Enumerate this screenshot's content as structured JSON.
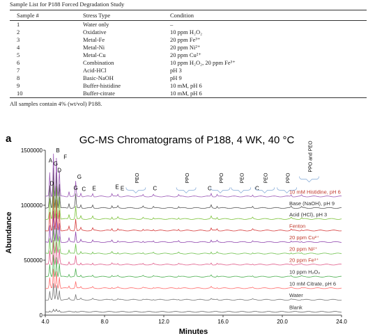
{
  "table": {
    "caption": "Sample List for P188 Forced Degradation Study",
    "headers": [
      "Sample #",
      "Stress Type",
      "Condition"
    ],
    "rows": [
      [
        "1",
        "Water only",
        "–"
      ],
      [
        "2",
        "Oxidative",
        "10 ppm H₂O₂"
      ],
      [
        "3",
        "Metal-Fe",
        "20 ppm Fe³⁺"
      ],
      [
        "4",
        "Metal-Ni",
        "20 ppm Ni²⁺"
      ],
      [
        "5",
        "Metal-Cu",
        "20 ppm Cu²⁺"
      ],
      [
        "6",
        "Combination",
        "10 ppm H₂O₂, 20 ppm Fe³⁺"
      ],
      [
        "7",
        "Acid-HCl",
        "pH 3"
      ],
      [
        "8",
        "Basic-NaOH",
        "pH 9"
      ],
      [
        "9",
        "Buffer-histidine",
        "10 mM, pH 6"
      ],
      [
        "10",
        "Buffer-citrate",
        "10 mM, pH 6"
      ]
    ],
    "footnote": "All samples contain 4% (wt/vol) P188."
  },
  "panel_label": "a",
  "chart_data": {
    "type": "line",
    "title": "GC-MS Chromatograms of P188, 4 WK, 40 °C",
    "xlabel": "Minutes",
    "ylabel": "Abundance",
    "xlim": [
      4.0,
      24.0
    ],
    "ylim": [
      0,
      1500000
    ],
    "x_ticks": [
      "4.0",
      "8.0",
      "12.0",
      "16.0",
      "20.0",
      "24.0"
    ],
    "y_ticks": [
      "0",
      "500000",
      "1000000",
      "1500000"
    ],
    "x_tick_values": [
      4,
      8,
      12,
      16,
      20,
      24
    ],
    "y_tick_values": [
      0,
      500000,
      1000000,
      1500000
    ],
    "series": [
      {
        "name": "Blank",
        "baseline": 30000,
        "color": "#666666"
      },
      {
        "name": "Water",
        "baseline": 140000,
        "color": "#777777"
      },
      {
        "name": "10 mM Citrate, pH 6",
        "baseline": 245000,
        "color": "#ff6b6b"
      },
      {
        "name": "10 ppm H₂O₂",
        "baseline": 350000,
        "color": "#4caf50"
      },
      {
        "name": "20 ppm Fe³⁺",
        "baseline": 460000,
        "color": "#e05c8a"
      },
      {
        "name": "20 ppm Ni²⁺",
        "baseline": 560000,
        "color": "#6cc04a"
      },
      {
        "name": "20 ppm Cu²⁺",
        "baseline": 665000,
        "color": "#8e44ad"
      },
      {
        "name": "Fenton",
        "baseline": 770000,
        "color": "#d63a3a"
      },
      {
        "name": "Acid (HCl), pH 3",
        "baseline": 875000,
        "color": "#7cc23a"
      },
      {
        "name": "Base (NaOH), pH 9",
        "baseline": 975000,
        "color": "#555555"
      },
      {
        "name": "10 mM Histidine, pH 6",
        "baseline": 1080000,
        "color": "#9b59b6"
      }
    ],
    "label_colors": [
      "#333333",
      "#333333",
      "#333333",
      "#333333",
      "#c0392b",
      "#c0392b",
      "#c0392b",
      "#c0392b",
      "#333333",
      "#333333",
      "#c0392b"
    ],
    "peaks": [
      {
        "x": 4.3,
        "h": 0.55
      },
      {
        "x": 4.55,
        "h": 1.0
      },
      {
        "x": 4.75,
        "h": 0.9
      },
      {
        "x": 4.95,
        "h": 0.6
      },
      {
        "x": 5.6,
        "h": 0.12
      },
      {
        "x": 6.05,
        "h": 0.35
      },
      {
        "x": 6.4,
        "h": 0.08
      },
      {
        "x": 7.2,
        "h": 0.07
      },
      {
        "x": 8.5,
        "h": 0.06
      },
      {
        "x": 8.9,
        "h": 0.05
      },
      {
        "x": 10.6,
        "h": 0.04
      },
      {
        "x": 11.3,
        "h": 0.04
      },
      {
        "x": 13.0,
        "h": 0.04
      },
      {
        "x": 15.2,
        "h": 0.07
      },
      {
        "x": 15.6,
        "h": 0.05
      },
      {
        "x": 18.0,
        "h": 0.04
      },
      {
        "x": 20.6,
        "h": 0.04
      },
      {
        "x": 21.3,
        "h": 0.03
      }
    ],
    "annotations": [
      {
        "text": "A",
        "x": 4.35,
        "y": 1390000
      },
      {
        "text": "B",
        "x": 4.85,
        "y": 1480000
      },
      {
        "text": "D",
        "x": 4.45,
        "y": 1180000
      },
      {
        "text": "D",
        "x": 4.95,
        "y": 1300000
      },
      {
        "text": "F",
        "x": 5.35,
        "y": 1420000
      },
      {
        "text": "G",
        "x": 6.05,
        "y": 1140000
      },
      {
        "text": "G",
        "x": 4.7,
        "y": 1360000
      },
      {
        "text": "G",
        "x": 6.3,
        "y": 1240000
      },
      {
        "text": "C",
        "x": 6.6,
        "y": 1130000
      },
      {
        "text": "E",
        "x": 7.3,
        "y": 1135000
      },
      {
        "text": "E",
        "x": 8.85,
        "y": 1150000
      },
      {
        "text": "E",
        "x": 9.2,
        "y": 1135000
      },
      {
        "text": "C",
        "x": 11.4,
        "y": 1135000
      },
      {
        "text": "C",
        "x": 15.1,
        "y": 1135000
      },
      {
        "text": "C",
        "x": 18.3,
        "y": 1135000
      }
    ],
    "group_labels": [
      {
        "text": "PEO",
        "x": 10.3,
        "y": 1200000
      },
      {
        "text": "PPO",
        "x": 13.7,
        "y": 1200000
      },
      {
        "text": "PPO",
        "x": 16.0,
        "y": 1200000
      },
      {
        "text": "PEO",
        "x": 17.4,
        "y": 1200000
      },
      {
        "text": "PEO",
        "x": 19.0,
        "y": 1200000
      },
      {
        "text": "PPO",
        "x": 20.5,
        "y": 1200000
      },
      {
        "text": "PPO and PEO",
        "x": 22.0,
        "y": 1300000
      }
    ]
  }
}
